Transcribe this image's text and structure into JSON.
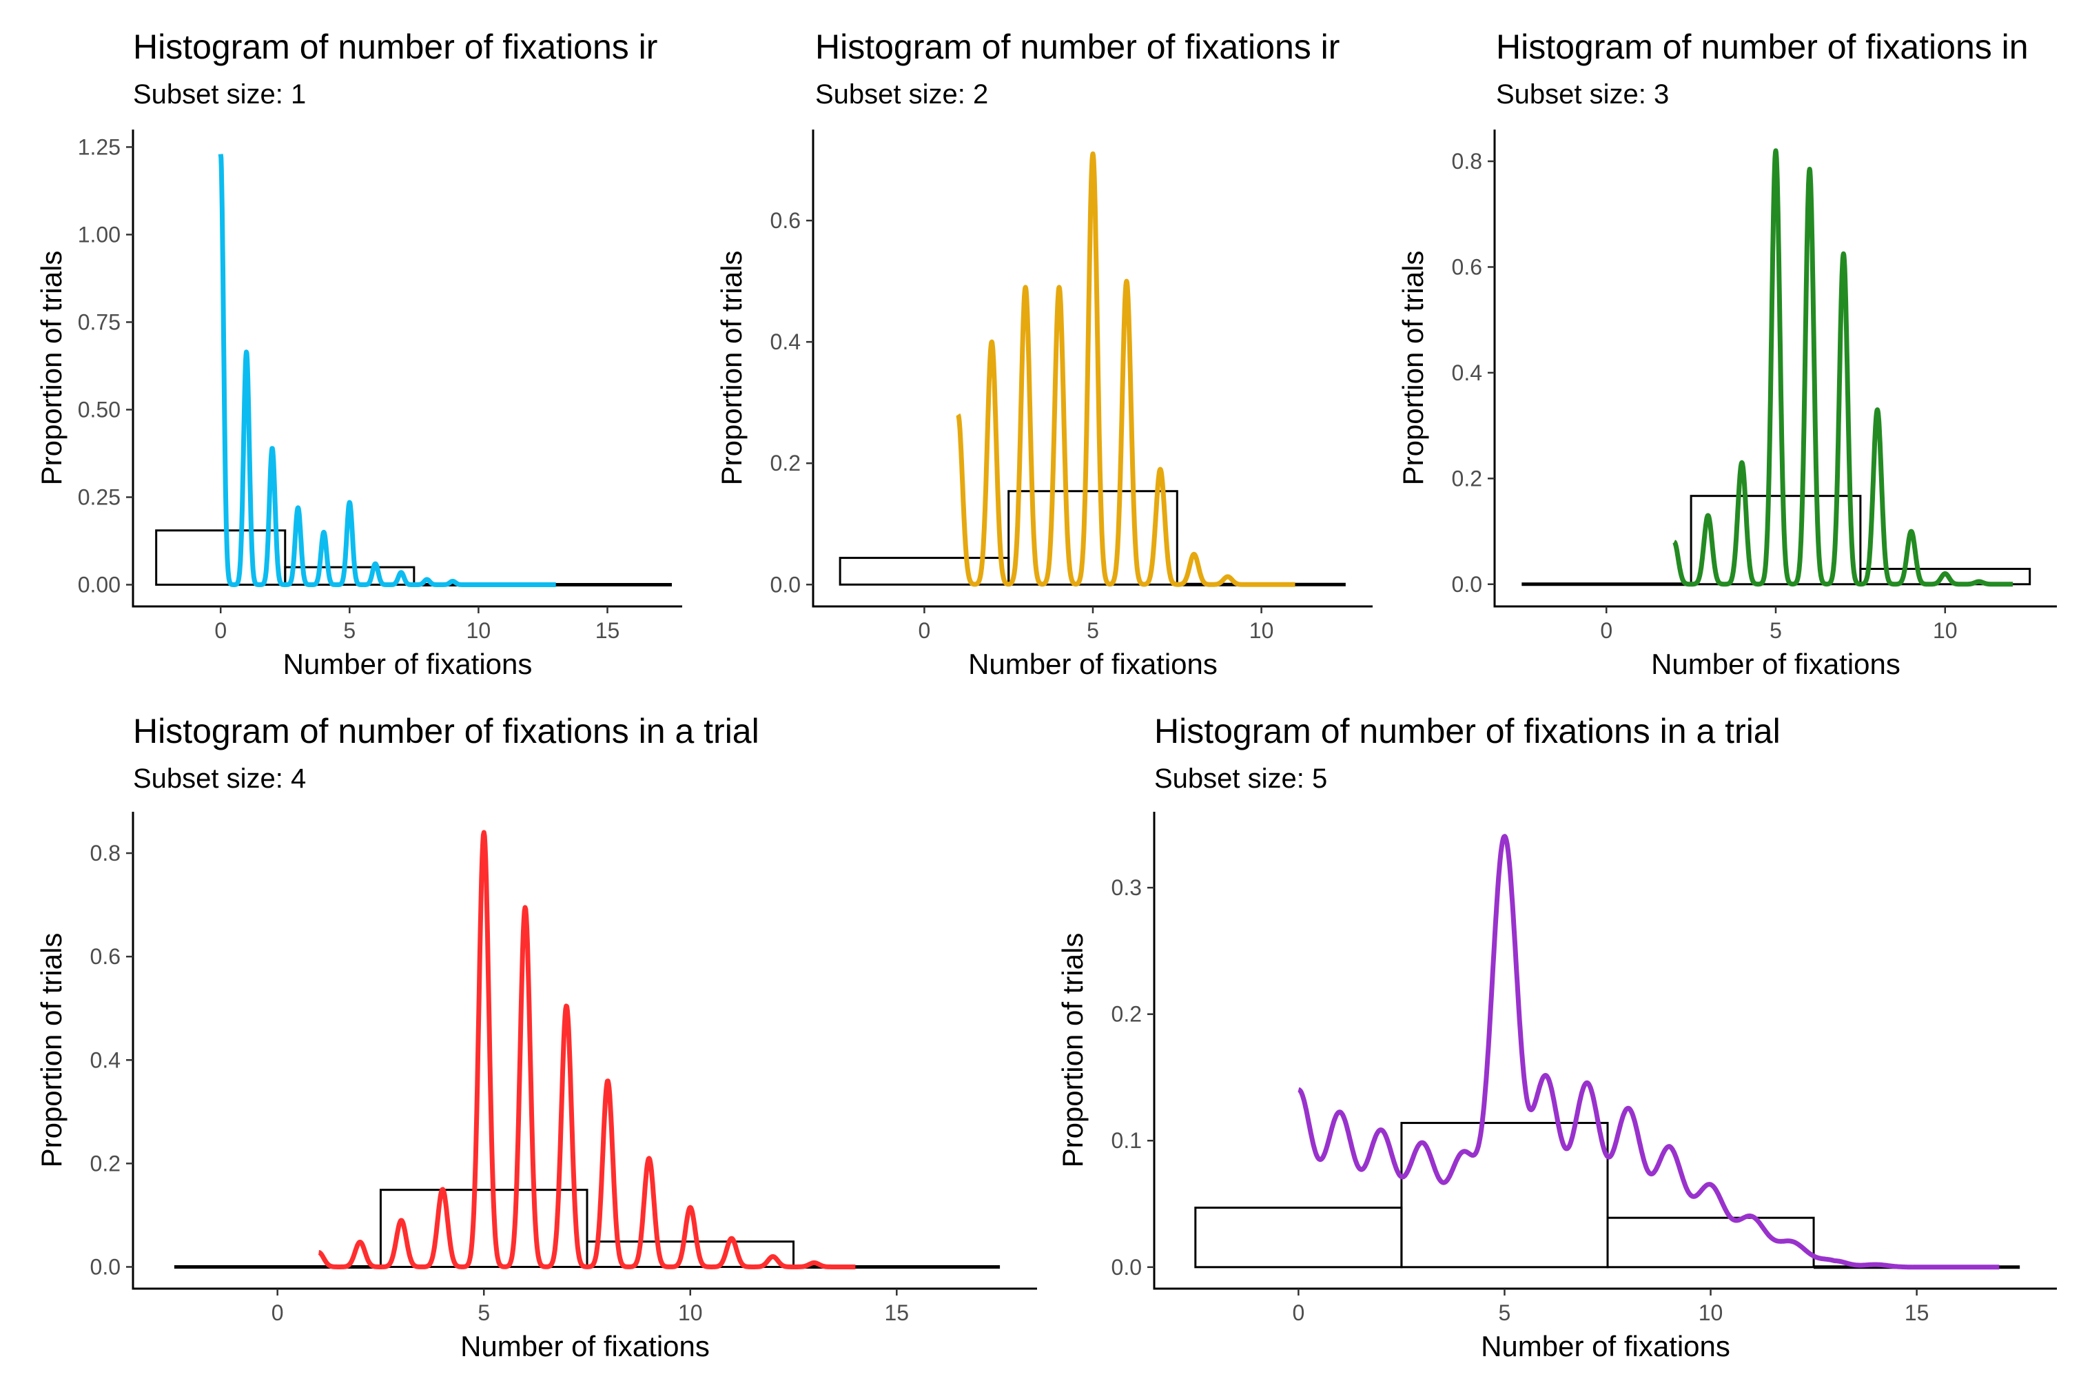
{
  "chart_data": [
    {
      "type": "bar+line",
      "title": "Histogram of number of fixations ir",
      "subtitle": "Subset size: 1",
      "xlabel": "Number of fixations",
      "ylabel": "Proportion of trials",
      "xlim": [
        -3.4,
        17.9
      ],
      "ylim": [
        -0.062,
        1.3
      ],
      "xticks": [
        0,
        5,
        10,
        15
      ],
      "yticks": [
        0,
        0.25,
        0.5,
        0.75,
        1.0
      ],
      "ytick_labels": [
        "0.00",
        "0.25",
        "0.50",
        "0.75",
        "1.00",
        "1.25"
      ],
      "yticks_all": [
        0,
        0.25,
        0.5,
        0.75,
        1.0,
        1.25
      ],
      "grid": false,
      "line_color": "#0cbcf0",
      "bins": [
        {
          "x0": -2.5,
          "x1": 2.5,
          "height": 0.155
        },
        {
          "x0": 2.5,
          "x1": 7.5,
          "height": 0.05
        },
        {
          "x0": 7.5,
          "x1": 12.5,
          "height": 0.0
        },
        {
          "x0": 12.5,
          "x1": 17.5,
          "height": 0.0
        }
      ],
      "density_peaks": [
        {
          "x": 0,
          "y": 1.23
        },
        {
          "x": 1,
          "y": 0.665
        },
        {
          "x": 2,
          "y": 0.39
        },
        {
          "x": 3,
          "y": 0.22
        },
        {
          "x": 4,
          "y": 0.15
        },
        {
          "x": 5,
          "y": 0.235
        },
        {
          "x": 6,
          "y": 0.06
        },
        {
          "x": 7,
          "y": 0.035
        },
        {
          "x": 8,
          "y": 0.015
        },
        {
          "x": 9,
          "y": 0.01
        }
      ],
      "density_range": [
        0,
        13
      ],
      "density_sigma": 0.11,
      "density_baseline": 0.0
    },
    {
      "type": "bar+line",
      "title": "Histogram of number of fixations ir",
      "subtitle": "Subset size: 2",
      "xlabel": "Number of fixations",
      "ylabel": "Proportion of trials",
      "xlim": [
        -3.3,
        13.3
      ],
      "ylim": [
        -0.036,
        0.75
      ],
      "xticks": [
        0,
        5,
        10
      ],
      "yticks_all": [
        0,
        0.2,
        0.4,
        0.6
      ],
      "ytick_labels": [
        "0.0",
        "0.2",
        "0.4",
        "0.6"
      ],
      "grid": false,
      "line_color": "#e6a80f",
      "bins": [
        {
          "x0": -2.5,
          "x1": 2.5,
          "height": 0.044
        },
        {
          "x0": 2.5,
          "x1": 7.5,
          "height": 0.154
        },
        {
          "x0": 7.5,
          "x1": 12.5,
          "height": 0.003
        }
      ],
      "density_peaks": [
        {
          "x": 1,
          "y": 0.28
        },
        {
          "x": 2,
          "y": 0.4
        },
        {
          "x": 3,
          "y": 0.49
        },
        {
          "x": 4,
          "y": 0.49
        },
        {
          "x": 5,
          "y": 0.71
        },
        {
          "x": 6,
          "y": 0.5
        },
        {
          "x": 7,
          "y": 0.19
        },
        {
          "x": 8,
          "y": 0.05
        },
        {
          "x": 9,
          "y": 0.013
        }
      ],
      "density_range": [
        1,
        11
      ],
      "density_sigma": 0.13,
      "density_baseline": 0.0
    },
    {
      "type": "bar+line",
      "title": "Histogram of number of fixations in",
      "subtitle": "Subset size: 3",
      "xlabel": "Number of fixations",
      "ylabel": "Proportion of trials",
      "xlim": [
        -3.3,
        13.3
      ],
      "ylim": [
        -0.042,
        0.86
      ],
      "xticks": [
        0,
        5,
        10
      ],
      "yticks_all": [
        0,
        0.2,
        0.4,
        0.6,
        0.8
      ],
      "ytick_labels": [
        "0.0",
        "0.2",
        "0.4",
        "0.6",
        "0.8"
      ],
      "grid": false,
      "line_color": "#238b22",
      "bins": [
        {
          "x0": -2.5,
          "x1": 2.5,
          "height": 0.004
        },
        {
          "x0": 2.5,
          "x1": 7.5,
          "height": 0.167
        },
        {
          "x0": 7.5,
          "x1": 12.5,
          "height": 0.029
        }
      ],
      "density_peaks": [
        {
          "x": 2,
          "y": 0.08
        },
        {
          "x": 3,
          "y": 0.13
        },
        {
          "x": 4,
          "y": 0.23
        },
        {
          "x": 5,
          "y": 0.82
        },
        {
          "x": 6,
          "y": 0.785
        },
        {
          "x": 7,
          "y": 0.625
        },
        {
          "x": 8,
          "y": 0.33
        },
        {
          "x": 9,
          "y": 0.1
        },
        {
          "x": 10,
          "y": 0.02
        },
        {
          "x": 11,
          "y": 0.005
        }
      ],
      "density_range": [
        2,
        12
      ],
      "density_sigma": 0.12,
      "density_baseline": 0.0
    },
    {
      "type": "bar+line",
      "title": "Histogram of number of fixations in a trial",
      "subtitle": "Subset size: 4",
      "xlabel": "Number of fixations",
      "ylabel": "Proportion of trials",
      "xlim": [
        -3.5,
        18.4
      ],
      "ylim": [
        -0.042,
        0.88
      ],
      "xticks": [
        0,
        5,
        10,
        15
      ],
      "yticks_all": [
        0,
        0.2,
        0.4,
        0.6,
        0.8
      ],
      "ytick_labels": [
        "0.0",
        "0.2",
        "0.4",
        "0.6",
        "0.8"
      ],
      "grid": false,
      "line_color": "#ff2e2e",
      "bins": [
        {
          "x0": -2.5,
          "x1": 2.5,
          "height": 0.004
        },
        {
          "x0": 2.5,
          "x1": 7.5,
          "height": 0.149
        },
        {
          "x0": 7.5,
          "x1": 12.5,
          "height": 0.049
        },
        {
          "x0": 12.5,
          "x1": 17.5,
          "height": 0.0
        }
      ],
      "density_peaks": [
        {
          "x": 1,
          "y": 0.028
        },
        {
          "x": 2,
          "y": 0.048
        },
        {
          "x": 3,
          "y": 0.09
        },
        {
          "x": 4,
          "y": 0.15
        },
        {
          "x": 5,
          "y": 0.84
        },
        {
          "x": 6,
          "y": 0.695
        },
        {
          "x": 7,
          "y": 0.505
        },
        {
          "x": 8,
          "y": 0.36
        },
        {
          "x": 9,
          "y": 0.21
        },
        {
          "x": 10,
          "y": 0.115
        },
        {
          "x": 11,
          "y": 0.055
        },
        {
          "x": 12,
          "y": 0.02
        },
        {
          "x": 13,
          "y": 0.008
        }
      ],
      "density_range": [
        1,
        14
      ],
      "density_sigma": 0.12,
      "density_baseline": 0.0
    },
    {
      "type": "bar+line",
      "title": "Histogram of number of fixations in a trial",
      "subtitle": "Subset size: 5",
      "xlabel": "Number of fixations",
      "ylabel": "Proportion of trials",
      "xlim": [
        -3.5,
        18.4
      ],
      "ylim": [
        -0.017,
        0.36
      ],
      "xticks": [
        0,
        5,
        10,
        15
      ],
      "yticks_all": [
        0,
        0.1,
        0.2,
        0.3
      ],
      "ytick_labels": [
        "0.0",
        "0.1",
        "0.2",
        "0.3"
      ],
      "grid": false,
      "line_color": "#9932cc",
      "bins": [
        {
          "x0": -2.5,
          "x1": 2.5,
          "height": 0.047
        },
        {
          "x0": 2.5,
          "x1": 7.5,
          "height": 0.114
        },
        {
          "x0": 7.5,
          "x1": 12.5,
          "height": 0.039
        },
        {
          "x0": 12.5,
          "x1": 17.5,
          "height": 0.0
        }
      ],
      "density_peaks": [
        {
          "x": 0,
          "y": 0.1
        },
        {
          "x": 1,
          "y": 0.082
        },
        {
          "x": 2,
          "y": 0.068
        },
        {
          "x": 3,
          "y": 0.058
        },
        {
          "x": 4,
          "y": 0.05
        },
        {
          "x": 5,
          "y": 0.3
        },
        {
          "x": 6,
          "y": 0.11
        },
        {
          "x": 7,
          "y": 0.105
        },
        {
          "x": 8,
          "y": 0.085
        },
        {
          "x": 9,
          "y": 0.055
        },
        {
          "x": 10,
          "y": 0.035
        },
        {
          "x": 11,
          "y": 0.02
        },
        {
          "x": 12,
          "y": 0.01
        },
        {
          "x": 13,
          "y": 0.005
        },
        {
          "x": 14,
          "y": 0.002
        }
      ],
      "density_range": [
        0,
        17
      ],
      "density_sigma": 0.3,
      "density_baseline": 0.04,
      "density_baseline_decay": true
    }
  ]
}
